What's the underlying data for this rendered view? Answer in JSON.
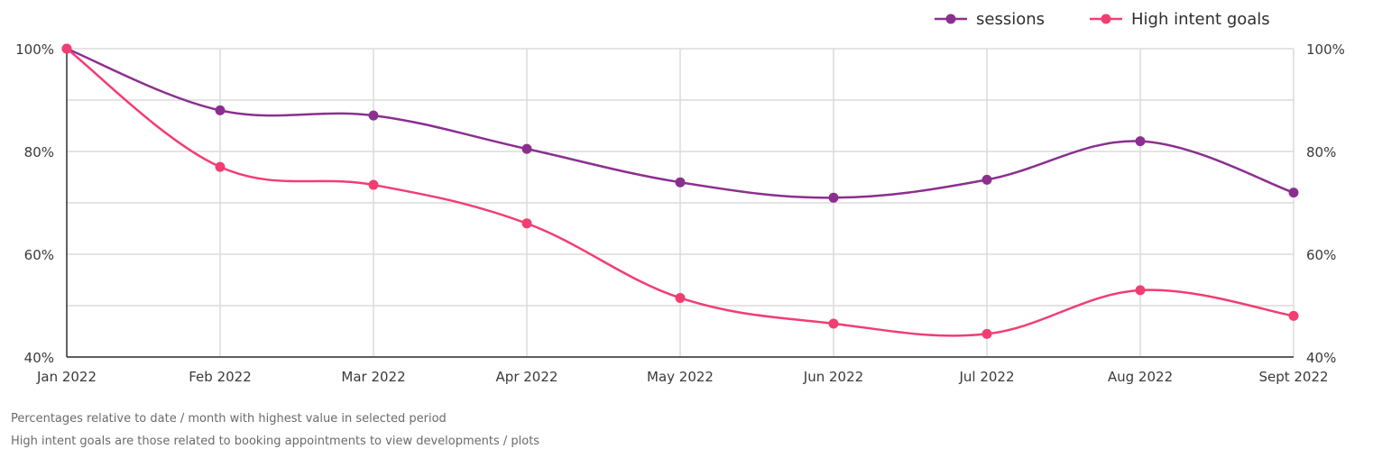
{
  "chart_data": {
    "type": "line",
    "categories": [
      "Jan 2022",
      "Feb 2022",
      "Mar 2022",
      "Apr 2022",
      "May 2022",
      "Jun 2022",
      "Jul 2022",
      "Aug 2022",
      "Sept 2022"
    ],
    "series": [
      {
        "name": "sessions",
        "color": "#8b2f8f",
        "values": [
          100,
          88,
          87,
          80.5,
          74,
          71,
          74.5,
          82,
          72
        ]
      },
      {
        "name": "High intent goals",
        "color": "#f23d72",
        "values": [
          100,
          77,
          73.5,
          66,
          51.5,
          46.5,
          44.5,
          53,
          48
        ]
      }
    ],
    "ylim": [
      40,
      100
    ],
    "y_ticks_left": [
      "100%",
      "80%",
      "60%",
      "40%"
    ],
    "y_ticks_right": [
      "100%",
      "80%",
      "60%",
      "40%"
    ],
    "y_tick_values": [
      100,
      80,
      60,
      40
    ],
    "y_gridlines": [
      40,
      50,
      60,
      70,
      80,
      90,
      100
    ],
    "title": "",
    "xlabel": "",
    "ylabel": "",
    "grid": true,
    "legend_position": "top-right",
    "curve": "smooth"
  },
  "footnotes": [
    "Percentages relative to date / month with highest value  in selected period",
    "High intent goals are those related to booking appointments to view developments / plots"
  ]
}
